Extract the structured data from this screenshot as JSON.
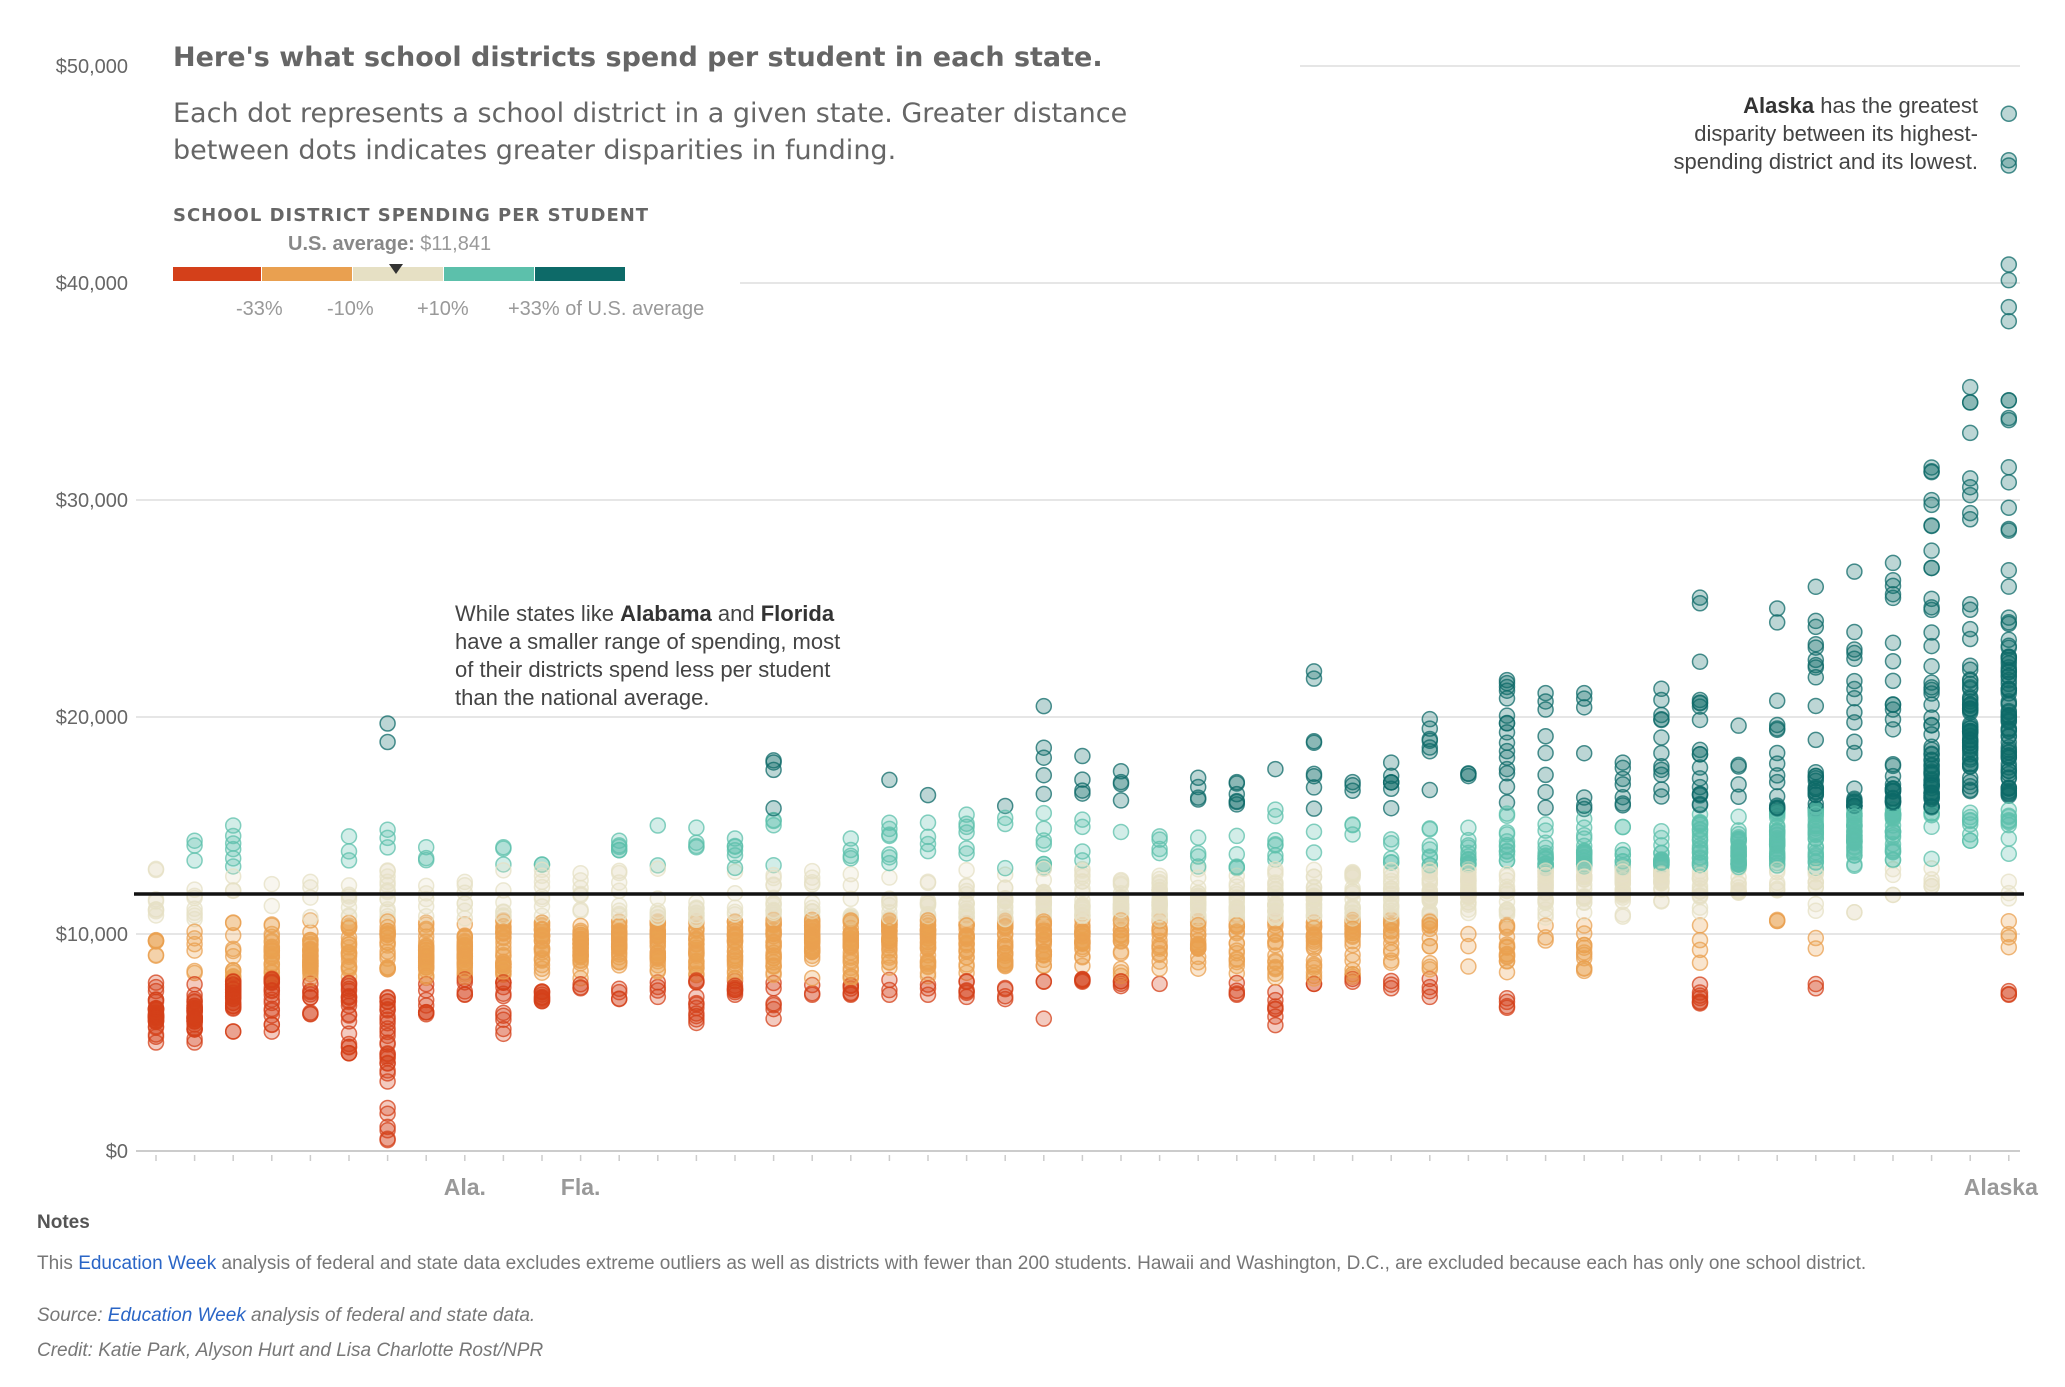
{
  "header": {
    "title": "Here's what school districts spend per student in each state.",
    "subtitle": "Each dot represents a school district in a given state. Greater distance between dots indicates greater disparities in funding."
  },
  "legend": {
    "title": "SCHOOL DISTRICT SPENDING PER STUDENT",
    "avg_label": "U.S. average:",
    "avg_value": "$11,841",
    "ticks": [
      "-33%",
      "-10%",
      "+10%",
      "+33% of U.S. average"
    ],
    "colors": [
      "#d4401a",
      "#e9a050",
      "#e6e0c4",
      "#5cc0ab",
      "#0d6a68"
    ]
  },
  "annotations": {
    "alaska": {
      "bold": "Alaska",
      "rest": " has the greatest disparity between its highest-spending district and its lowest."
    },
    "alabama": {
      "p1": "While states like ",
      "b1": "Alabama",
      "p2": " and ",
      "b2": "Florida",
      "p3": " have a smaller range of spending, most of their districts spend less per student than the national average."
    }
  },
  "notes": {
    "title": "Notes",
    "text_pre": "This ",
    "link": "Education Week",
    "text_post": " analysis of federal and state data excludes extreme outliers as well as districts with fewer than 200 students. Hawaii and Washington, D.C., are excluded because each has only one school district.",
    "source_pre": "Source: ",
    "source_link": "Education Week",
    "source_post": " analysis of federal and state data.",
    "credit": "Credit: Katie Park, Alyson Hurt and Lisa Charlotte Rost/NPR"
  },
  "chart_data": {
    "type": "scatter",
    "title": "Here's what school districts spend per student in each state.",
    "ylim": [
      0,
      50000
    ],
    "yticks": [
      {
        "value": 0,
        "label": "$0"
      },
      {
        "value": 10000,
        "label": "$10,000"
      },
      {
        "value": 20000,
        "label": "$20,000"
      },
      {
        "value": 30000,
        "label": "$30,000"
      },
      {
        "value": 40000,
        "label": "$40,000"
      },
      {
        "value": 50000,
        "label": "$50,000"
      }
    ],
    "us_average": 11841,
    "grid": true,
    "x_labels": [
      {
        "state_index": 8,
        "label": "Ala."
      },
      {
        "state_index": 11,
        "label": "Fla."
      },
      {
        "state_index": 48,
        "label": "Alaska"
      }
    ],
    "series": [
      {
        "min": 5000,
        "max": 13000,
        "mode": 6300
      },
      {
        "min": 5000,
        "max": 14300,
        "mode": 6300
      },
      {
        "min": 5500,
        "max": 15000,
        "mode": 7500
      },
      {
        "min": 5500,
        "max": 12300,
        "mode": 8700
      },
      {
        "min": 6300,
        "max": 12400,
        "mode": 8700
      },
      {
        "min": 4500,
        "max": 14500,
        "mode": 8800
      },
      {
        "min": 500,
        "max": 19700,
        "mode": 9000
      },
      {
        "min": 6300,
        "max": 14000,
        "mode": 9000
      },
      {
        "min": 7200,
        "max": 12400,
        "mode": 9200
      },
      {
        "min": 5400,
        "max": 14000,
        "mode": 9300
      },
      {
        "min": 6900,
        "max": 13200,
        "mode": 9400
      },
      {
        "min": 7500,
        "max": 12800,
        "mode": 9400
      },
      {
        "min": 7000,
        "max": 14300,
        "mode": 9500
      },
      {
        "min": 7100,
        "max": 15000,
        "mode": 9600
      },
      {
        "min": 5900,
        "max": 14900,
        "mode": 9700
      },
      {
        "min": 7200,
        "max": 14400,
        "mode": 9900
      },
      {
        "min": 6100,
        "max": 18000,
        "mode": 10000
      },
      {
        "min": 7200,
        "max": 12900,
        "mode": 10000
      },
      {
        "min": 7200,
        "max": 14400,
        "mode": 10100
      },
      {
        "min": 7200,
        "max": 17100,
        "mode": 10200
      },
      {
        "min": 7200,
        "max": 16400,
        "mode": 10200
      },
      {
        "min": 7100,
        "max": 15500,
        "mode": 10300
      },
      {
        "min": 7000,
        "max": 15900,
        "mode": 10400
      },
      {
        "min": 6100,
        "max": 20500,
        "mode": 10500
      },
      {
        "min": 7800,
        "max": 18200,
        "mode": 10700
      },
      {
        "min": 7600,
        "max": 17500,
        "mode": 10800
      },
      {
        "min": 7700,
        "max": 14500,
        "mode": 10900
      },
      {
        "min": 8400,
        "max": 17200,
        "mode": 11000
      },
      {
        "min": 7200,
        "max": 17000,
        "mode": 11100
      },
      {
        "min": 5800,
        "max": 17600,
        "mode": 11200
      },
      {
        "min": 7700,
        "max": 22100,
        "mode": 11300
      },
      {
        "min": 7800,
        "max": 17000,
        "mode": 11400
      },
      {
        "min": 7500,
        "max": 17900,
        "mode": 11600
      },
      {
        "min": 7100,
        "max": 19900,
        "mode": 11800
      },
      {
        "min": 8500,
        "max": 17400,
        "mode": 12000
      },
      {
        "min": 6600,
        "max": 21700,
        "mode": 12200
      },
      {
        "min": 9700,
        "max": 21100,
        "mode": 12500
      },
      {
        "min": 8300,
        "max": 21100,
        "mode": 12600
      },
      {
        "min": 10800,
        "max": 17900,
        "mode": 12800
      },
      {
        "min": 11500,
        "max": 21300,
        "mode": 13000
      },
      {
        "min": 6800,
        "max": 25500,
        "mode": 13500
      },
      {
        "min": 11900,
        "max": 19600,
        "mode": 13800
      },
      {
        "min": 10600,
        "max": 25000,
        "mode": 14200
      },
      {
        "min": 7500,
        "max": 26000,
        "mode": 14500
      },
      {
        "min": 11000,
        "max": 26700,
        "mode": 15000
      },
      {
        "min": 11800,
        "max": 27100,
        "mode": 15800
      },
      {
        "min": 12200,
        "max": 31500,
        "mode": 17000
      },
      {
        "min": 14300,
        "max": 35200,
        "mode": 20000
      },
      {
        "min": 7200,
        "max": 47800,
        "mode": 19000
      }
    ]
  }
}
